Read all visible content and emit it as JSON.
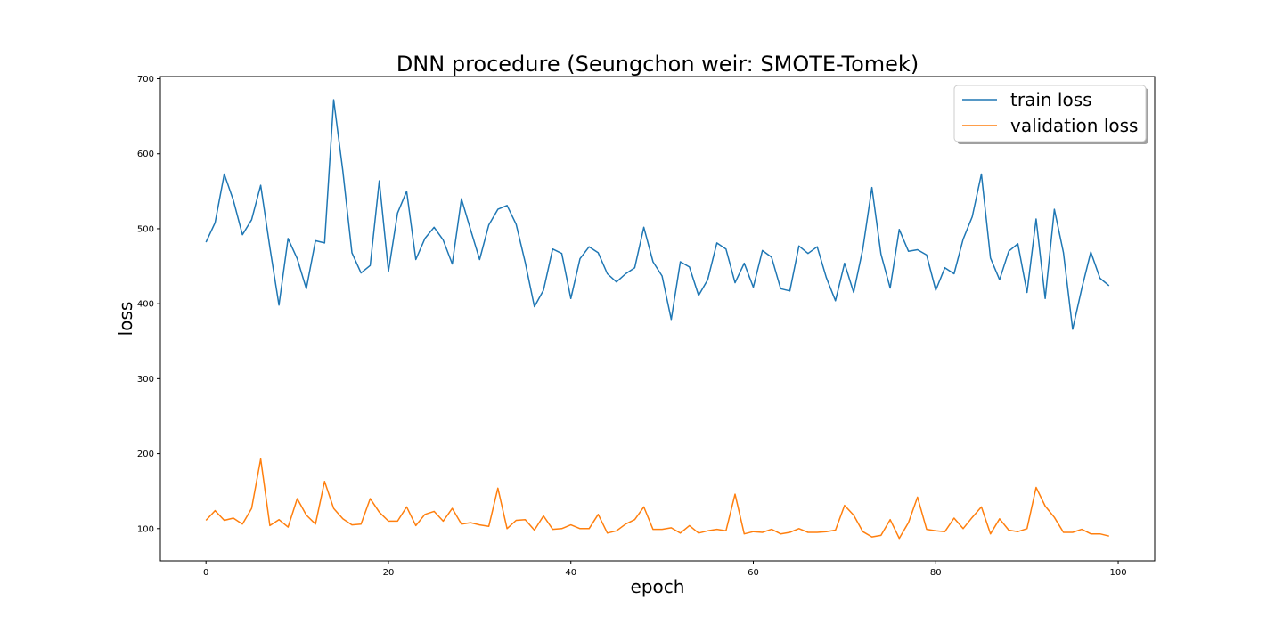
{
  "chart_data": {
    "type": "line",
    "title": "DNN procedure (Seungchon weir: SMOTE-Tomek)",
    "xlabel": "epoch",
    "ylabel": "loss",
    "xlim": [
      -5,
      104
    ],
    "ylim": [
      57,
      703
    ],
    "xticks": [
      0,
      20,
      40,
      60,
      80,
      100
    ],
    "yticks": [
      100,
      200,
      300,
      400,
      500,
      600,
      700
    ],
    "grid": false,
    "legend_position": "top-right",
    "x": [
      0,
      1,
      2,
      3,
      4,
      5,
      6,
      7,
      8,
      9,
      10,
      11,
      12,
      13,
      14,
      15,
      16,
      17,
      18,
      19,
      20,
      21,
      22,
      23,
      24,
      25,
      26,
      27,
      28,
      29,
      30,
      31,
      32,
      33,
      34,
      35,
      36,
      37,
      38,
      39,
      40,
      41,
      42,
      43,
      44,
      45,
      46,
      47,
      48,
      49,
      50,
      51,
      52,
      53,
      54,
      55,
      56,
      57,
      58,
      59,
      60,
      61,
      62,
      63,
      64,
      65,
      66,
      67,
      68,
      69,
      70,
      71,
      72,
      73,
      74,
      75,
      76,
      77,
      78,
      79,
      80,
      81,
      82,
      83,
      84,
      85,
      86,
      87,
      88,
      89,
      90,
      91,
      92,
      93,
      94,
      95,
      96,
      97,
      98,
      99
    ],
    "series": [
      {
        "name": "train loss",
        "color": "#1f77b4",
        "values": [
          482,
          508,
          573,
          538,
          492,
          512,
          558,
          475,
          398,
          487,
          460,
          420,
          484,
          481,
          672,
          577,
          468,
          441,
          451,
          564,
          443,
          521,
          550,
          459,
          487,
          502,
          485,
          453,
          540,
          499,
          459,
          505,
          526,
          531,
          506,
          455,
          396,
          418,
          473,
          467,
          407,
          460,
          476,
          468,
          440,
          429,
          440,
          448,
          502,
          456,
          437,
          379,
          456,
          449,
          411,
          432,
          481,
          473,
          428,
          454,
          422,
          471,
          462,
          420,
          417,
          477,
          467,
          476,
          435,
          404,
          454,
          415,
          473,
          555,
          466,
          421,
          499,
          470,
          472,
          465,
          418,
          448,
          440,
          486,
          516,
          573,
          461,
          432,
          470,
          480,
          415,
          513,
          407,
          526,
          468,
          366,
          420,
          469,
          434,
          424
        ]
      },
      {
        "name": "validation loss",
        "color": "#ff7f0e",
        "values": [
          111,
          124,
          111,
          114,
          106,
          127,
          193,
          104,
          112,
          102,
          140,
          118,
          106,
          163,
          127,
          113,
          105,
          106,
          140,
          122,
          110,
          110,
          129,
          104,
          119,
          123,
          110,
          127,
          106,
          108,
          105,
          103,
          154,
          100,
          111,
          112,
          98,
          117,
          99,
          100,
          105,
          100,
          100,
          119,
          94,
          97,
          106,
          112,
          129,
          99,
          99,
          101,
          94,
          104,
          94,
          97,
          99,
          97,
          146,
          93,
          96,
          95,
          99,
          93,
          95,
          100,
          95,
          95,
          96,
          98,
          131,
          118,
          96,
          89,
          91,
          112,
          87,
          108,
          142,
          99,
          97,
          96,
          114,
          100,
          115,
          129,
          93,
          113,
          98,
          96,
          100,
          155,
          130,
          115,
          95,
          95,
          99,
          93,
          93,
          90
        ]
      }
    ]
  }
}
